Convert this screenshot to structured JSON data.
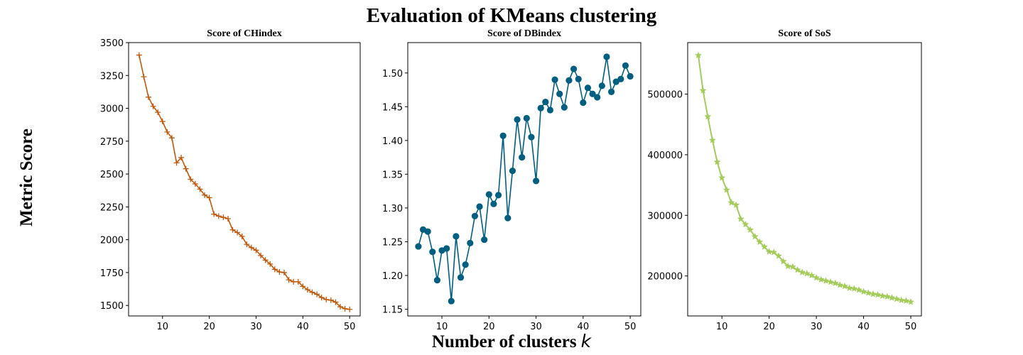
{
  "figure": {
    "title": "Evaluation of KMeans clustering",
    "ylabel": "Metric Score",
    "xlabel_text": "Number of clusters",
    "xlabel_var": "k"
  },
  "chart_data": [
    {
      "type": "line",
      "title": "Score of CHindex",
      "xlabel": "",
      "ylabel": "",
      "color": "#C0580A",
      "marker": "plus",
      "xlim": [
        2.75,
        52.25
      ],
      "ylim": [
        1420,
        3500
      ],
      "xticks": [
        10,
        20,
        30,
        40,
        50
      ],
      "yticks": [
        1500,
        1750,
        2000,
        2250,
        2500,
        2750,
        3000,
        3250,
        3500
      ],
      "grid": false,
      "x": [
        5,
        6,
        7,
        8,
        9,
        10,
        11,
        12,
        13,
        14,
        15,
        16,
        17,
        18,
        19,
        20,
        21,
        22,
        23,
        24,
        25,
        26,
        27,
        28,
        29,
        30,
        31,
        32,
        33,
        34,
        35,
        36,
        37,
        38,
        39,
        40,
        41,
        42,
        43,
        44,
        45,
        46,
        47,
        48,
        49,
        50
      ],
      "values": [
        3405,
        3240,
        3085,
        3015,
        2970,
        2900,
        2820,
        2775,
        2585,
        2625,
        2540,
        2460,
        2425,
        2385,
        2340,
        2320,
        2195,
        2180,
        2170,
        2160,
        2075,
        2055,
        2025,
        1965,
        1940,
        1920,
        1880,
        1845,
        1815,
        1775,
        1755,
        1750,
        1695,
        1680,
        1680,
        1645,
        1620,
        1600,
        1585,
        1560,
        1545,
        1540,
        1525,
        1490,
        1475,
        1470
      ]
    },
    {
      "type": "line",
      "title": "Score of DBindex",
      "xlabel": "",
      "ylabel": "",
      "color": "#005F80",
      "marker": "circle",
      "xlim": [
        2.75,
        52.25
      ],
      "ylim": [
        1.14,
        1.545
      ],
      "xticks": [
        10,
        20,
        30,
        40,
        50
      ],
      "yticks": [
        1.15,
        1.2,
        1.25,
        1.3,
        1.35,
        1.4,
        1.45,
        1.5
      ],
      "grid": false,
      "x": [
        5,
        6,
        7,
        8,
        9,
        10,
        11,
        12,
        13,
        14,
        15,
        16,
        17,
        18,
        19,
        20,
        21,
        22,
        23,
        24,
        25,
        26,
        27,
        28,
        29,
        30,
        31,
        32,
        33,
        34,
        35,
        36,
        37,
        38,
        39,
        40,
        41,
        42,
        43,
        44,
        45,
        46,
        47,
        48,
        49,
        50
      ],
      "values": [
        1.243,
        1.268,
        1.265,
        1.235,
        1.193,
        1.237,
        1.24,
        1.162,
        1.258,
        1.197,
        1.216,
        1.248,
        1.288,
        1.302,
        1.253,
        1.32,
        1.306,
        1.319,
        1.407,
        1.285,
        1.355,
        1.431,
        1.375,
        1.433,
        1.405,
        1.34,
        1.448,
        1.457,
        1.445,
        1.49,
        1.469,
        1.449,
        1.489,
        1.506,
        1.491,
        1.456,
        1.478,
        1.469,
        1.464,
        1.481,
        1.524,
        1.472,
        1.487,
        1.491,
        1.511,
        1.495
      ]
    },
    {
      "type": "line",
      "title": "Score of SoS",
      "xlabel": "",
      "ylabel": "",
      "color": "#A3CC5B",
      "marker": "star",
      "xlim": [
        2.75,
        52.25
      ],
      "ylim": [
        134000,
        585000
      ],
      "xticks": [
        10,
        20,
        30,
        40,
        50
      ],
      "yticks": [
        200000,
        300000,
        400000,
        500000
      ],
      "grid": false,
      "x": [
        5,
        6,
        7,
        8,
        9,
        10,
        11,
        12,
        13,
        14,
        15,
        16,
        17,
        18,
        19,
        20,
        21,
        22,
        23,
        24,
        25,
        26,
        27,
        28,
        29,
        30,
        31,
        32,
        33,
        34,
        35,
        36,
        37,
        38,
        39,
        40,
        41,
        42,
        43,
        44,
        45,
        46,
        47,
        48,
        49,
        50
      ],
      "values": [
        564000,
        506000,
        463000,
        424000,
        388000,
        362000,
        342000,
        321000,
        317000,
        294000,
        285000,
        276000,
        265000,
        256000,
        248000,
        240000,
        239000,
        233000,
        224000,
        216000,
        215000,
        210000,
        206000,
        204000,
        201000,
        197000,
        194000,
        192000,
        190000,
        188000,
        185000,
        183000,
        180000,
        179000,
        177000,
        174000,
        172000,
        170000,
        169000,
        167000,
        166000,
        164000,
        162000,
        160000,
        159000,
        157000
      ]
    }
  ]
}
